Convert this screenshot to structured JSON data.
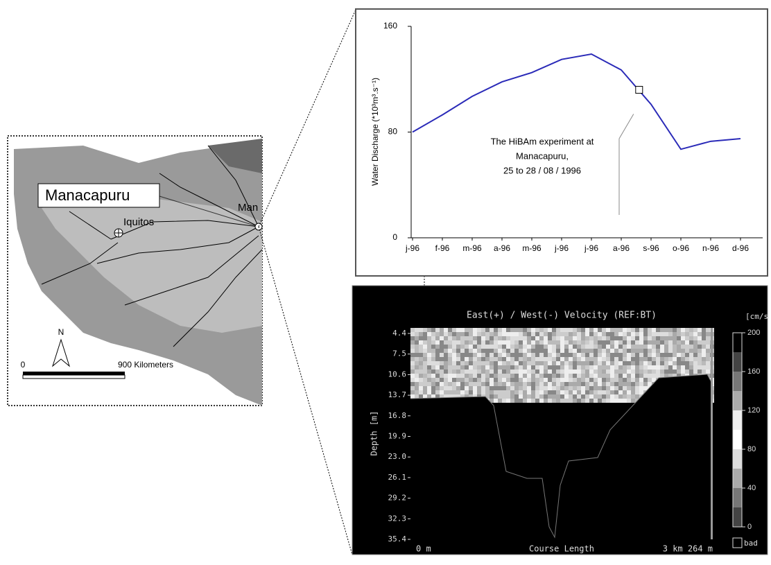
{
  "map": {
    "callout": "Manacapuru",
    "city": "Iquitos",
    "city_partial": "Man",
    "north": "N",
    "scale_start": "0",
    "scale_end": "900  Kilometers"
  },
  "chart_data": [
    {
      "type": "line",
      "y_label": "Water Discharge (*10³m³.s⁻¹)",
      "categories": [
        "j-96",
        "f-96",
        "m-96",
        "a-96",
        "m-96",
        "j-96",
        "j-96",
        "a-96",
        "s-96",
        "o-96",
        "n-96",
        "d-96"
      ],
      "series": [
        {
          "color": "#2a2ab8",
          "values": [
            80,
            93,
            107,
            118,
            125,
            135,
            139,
            127,
            101,
            67,
            73,
            75
          ]
        }
      ],
      "highlight_value": 112,
      "annotation": [
        "The HiBAm experiment at",
        "Manacapuru,",
        "25 to 28 / 08 / 1996"
      ],
      "ylim": [
        0,
        160
      ],
      "yticks": [
        0,
        80,
        160
      ]
    },
    {
      "type": "section",
      "title": "East(+) / West(-) Velocity (REF:BT)",
      "y_label": "Depth [m]",
      "ylim": [
        4.4,
        35.4
      ],
      "yticks": [
        4.4,
        7.5,
        10.6,
        13.7,
        16.8,
        19.9,
        {
          "value": 23,
          "label": "23.0"
        },
        26.1,
        29.2,
        32.3,
        35.4
      ],
      "x_labels": [
        "0 m",
        "Course Length",
        "3 km 264 m"
      ],
      "colorbar": {
        "label": "[cm/s",
        "lim": [
          0,
          200
        ],
        "ticks": [
          0,
          40,
          80,
          120,
          160,
          200
        ],
        "bad_label": "bad"
      }
    }
  ]
}
